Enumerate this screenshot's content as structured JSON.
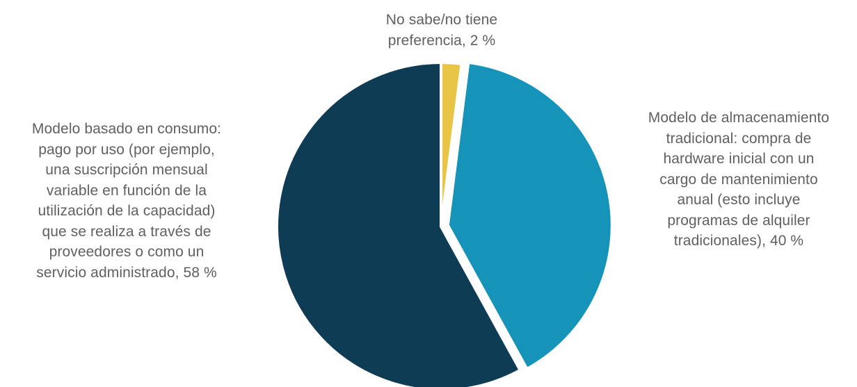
{
  "chart_data": {
    "type": "pie",
    "title": "",
    "start_angle_deg": 0,
    "direction": "clockwise",
    "slices": [
      {
        "label_lines": [
          "No sabe/no tiene",
          "preferencia, 2 %"
        ],
        "value": 2,
        "color": "#e8c547",
        "exploded": false
      },
      {
        "label_lines": [
          "Modelo de almacenamiento",
          "tradicional: compra de",
          "hardware inicial con un",
          "cargo de mantenimiento",
          "anual (esto incluye",
          "programas de alquiler",
          "tradicionales), 40 %"
        ],
        "value": 40,
        "color": "#1593b8",
        "exploded": true
      },
      {
        "label_lines": [
          "Modelo basado en consumo:",
          "pago por uso (por ejemplo,",
          "una suscripción mensual",
          "variable en función de la",
          "utilización de la capacidad)",
          "que se realiza a través de",
          "proveedores o como un",
          "servicio administrado, 58 %"
        ],
        "value": 58,
        "color": "#0f3c55",
        "exploded": false
      }
    ]
  }
}
